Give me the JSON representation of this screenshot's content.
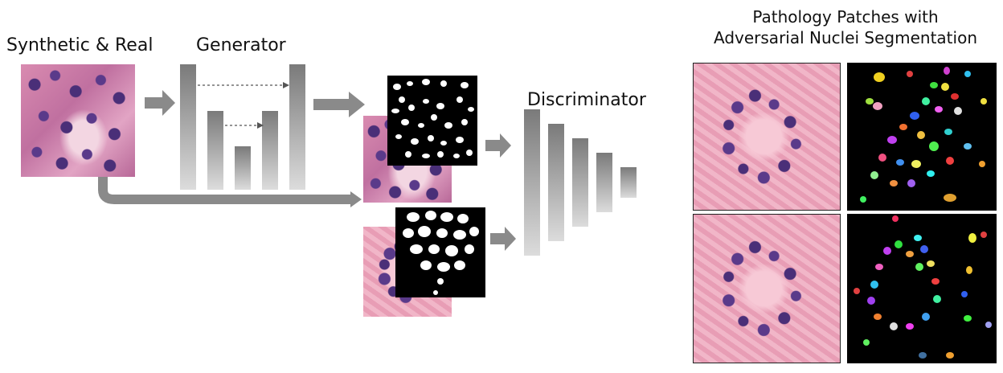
{
  "labels": {
    "input": "Synthetic & Real",
    "generator": "Generator",
    "discriminator": "Discriminator",
    "output_title_line1": "Pathology Patches with",
    "output_title_line2": "Adversarial Nuclei Segmentation"
  },
  "colors": {
    "arrow": "#8a8a8a",
    "bar_top": "#7a7a7a",
    "bar_bottom": "#dcdcdc",
    "mask_bg": "#000000",
    "nucleus": "#ffffff"
  }
}
